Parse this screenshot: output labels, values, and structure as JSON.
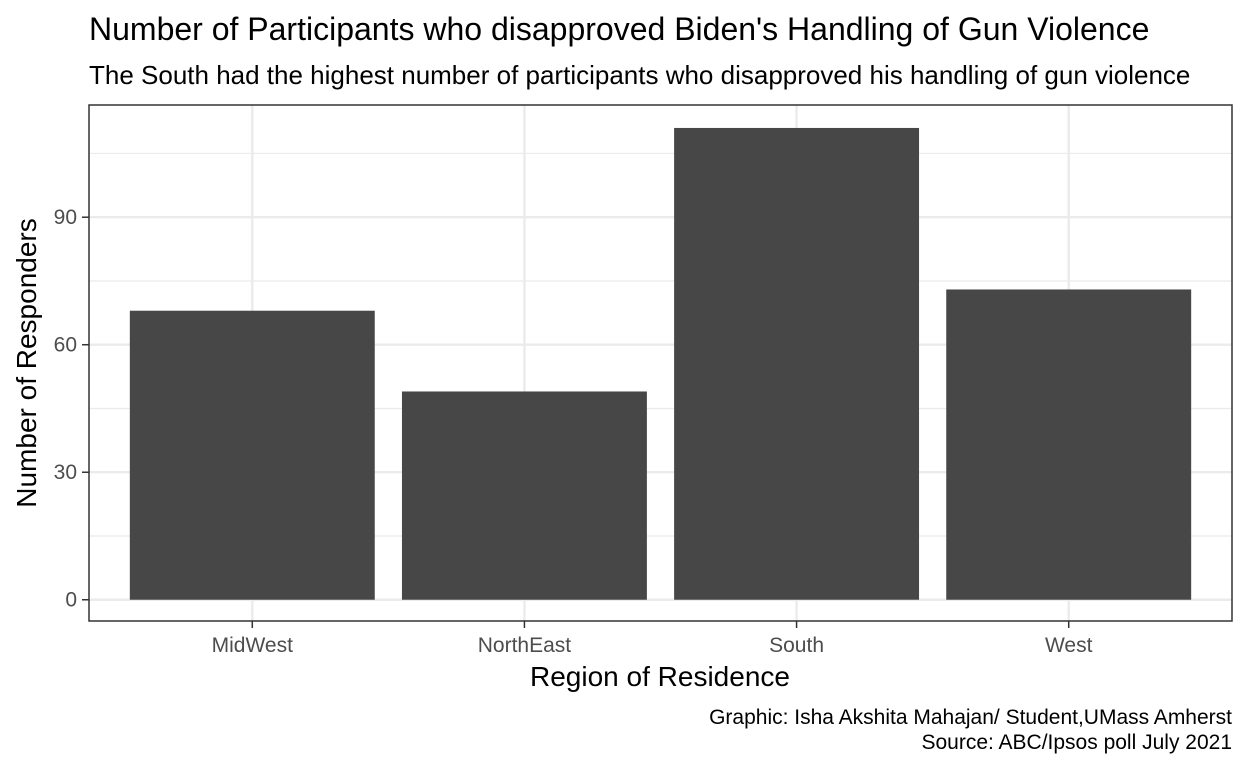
{
  "chart_data": {
    "type": "bar",
    "title": "Number of Participants who disapproved Biden's Handling of Gun Violence",
    "subtitle": "The South had the highest number of participants who disapproved his handling of gun violence",
    "xlabel": "Region of Residence",
    "ylabel": "Number of Responders",
    "categories": [
      "MidWest",
      "NorthEast",
      "South",
      "West"
    ],
    "values": [
      68,
      49,
      111,
      73
    ],
    "ylim": [
      -5,
      116.4
    ],
    "yticks": [
      0,
      30,
      60,
      90
    ],
    "ytick_labels": [
      "0",
      "30",
      "60",
      "90"
    ],
    "grid": true,
    "legend": "none",
    "bar_color": "#474747",
    "grid_color": "#ebebeb",
    "caption_lines": [
      "Graphic: Isha Akshita Mahajan/ Student,UMass Amherst",
      "Source: ABC/Ipsos poll July 2021"
    ]
  }
}
